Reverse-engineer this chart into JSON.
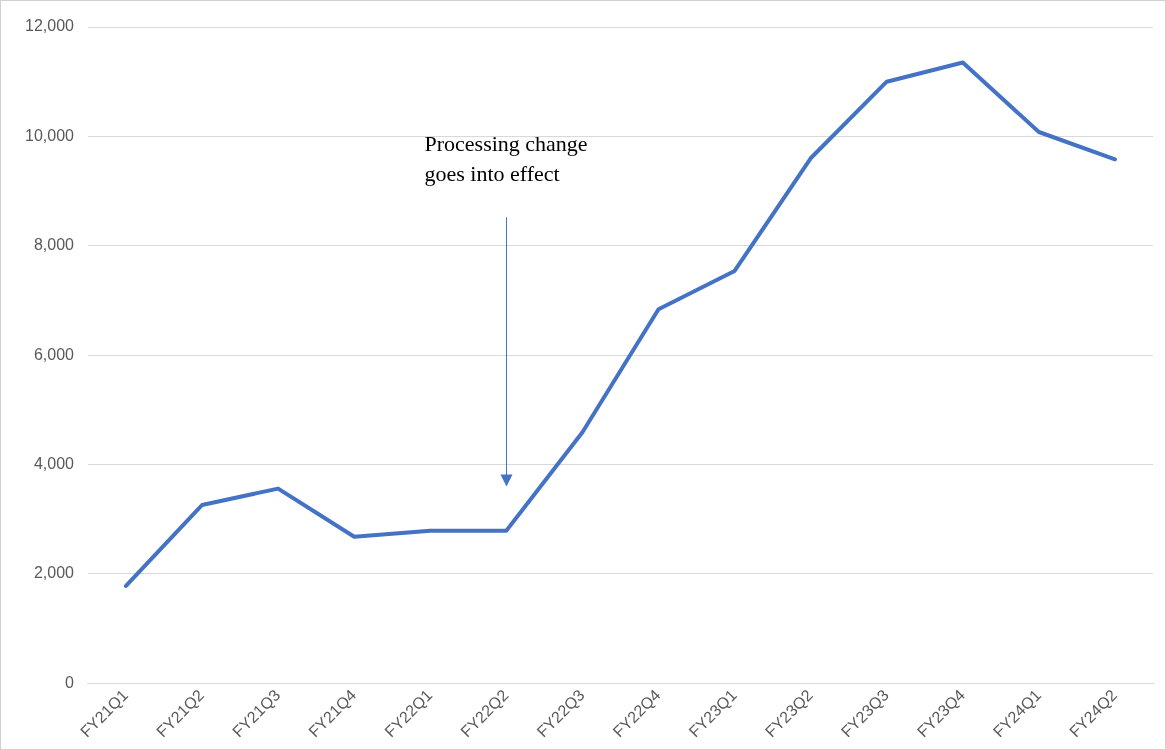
{
  "chart_data": {
    "type": "line",
    "categories": [
      "FY21Q1",
      "FY21Q2",
      "FY21Q3",
      "FY21Q4",
      "FY22Q1",
      "FY22Q2",
      "FY22Q3",
      "FY22Q4",
      "FY23Q1",
      "FY23Q2",
      "FY23Q3",
      "FY23Q4",
      "FY24Q1",
      "FY24Q2"
    ],
    "series": [
      {
        "color": "#4472c4",
        "values": [
          1780,
          3260,
          3560,
          2680,
          2790,
          2790,
          4590,
          6840,
          7540,
          9600,
          11000,
          11350,
          10080,
          9580
        ]
      }
    ],
    "ylim": [
      0,
      12000
    ],
    "yticks": [
      {
        "value": 0,
        "label": "0"
      },
      {
        "value": 2000,
        "label": "2,000"
      },
      {
        "value": 4000,
        "label": "4,000"
      },
      {
        "value": 6000,
        "label": "6,000"
      },
      {
        "value": 8000,
        "label": "8,000"
      },
      {
        "value": 10000,
        "label": "10,000"
      },
      {
        "value": 12000,
        "label": "12,000"
      }
    ],
    "grid": "y",
    "legend": false,
    "marker": "none",
    "line_style": "solid",
    "annotations": [
      "Processing change goes into effect"
    ]
  }
}
